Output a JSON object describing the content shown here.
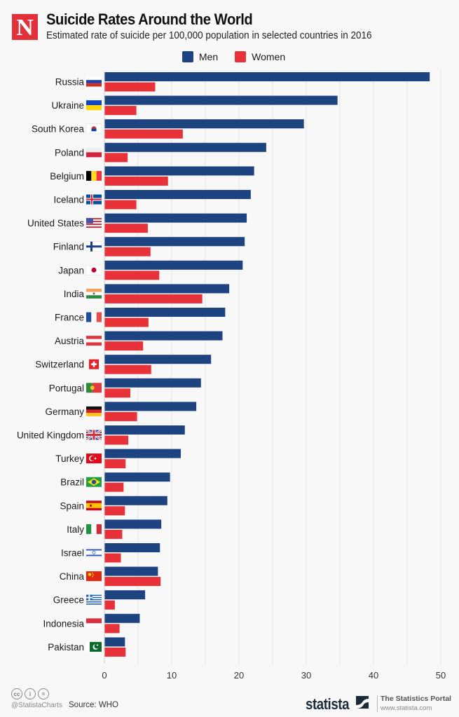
{
  "header": {
    "logo_letter": "N",
    "title": "Suicide Rates Around the World",
    "subtitle": "Estimated rate of suicide per 100,000 population in selected countries in 2016"
  },
  "colors": {
    "men": "#1d4380",
    "women": "#e8323a",
    "grid": "#e4e4e4",
    "background": "#f8f8f8"
  },
  "chart_data": {
    "type": "bar",
    "orientation": "horizontal",
    "title": "Suicide Rates Around the World",
    "subtitle": "Estimated rate of suicide per 100,000 population in selected countries in 2016",
    "xlabel": "",
    "ylabel": "",
    "xlim": [
      0,
      50
    ],
    "xticks": [
      0,
      10,
      20,
      30,
      40,
      50
    ],
    "grid": true,
    "legend_position": "top-center",
    "categories": [
      "Russia",
      "Ukraine",
      "South Korea",
      "Poland",
      "Belgium",
      "Iceland",
      "United States",
      "Finland",
      "Japan",
      "India",
      "France",
      "Austria",
      "Switzerland",
      "Portugal",
      "Germany",
      "United Kingdom",
      "Turkey",
      "Brazil",
      "Spain",
      "Italy",
      "Israel",
      "China",
      "Greece",
      "Indonesia",
      "Pakistan"
    ],
    "flags": [
      "russia-flag",
      "ukraine-flag",
      "south-korea-flag",
      "poland-flag",
      "belgium-flag",
      "iceland-flag",
      "united-states-flag",
      "finland-flag",
      "japan-flag",
      "india-flag",
      "france-flag",
      "austria-flag",
      "switzerland-flag",
      "portugal-flag",
      "germany-flag",
      "united-kingdom-flag",
      "turkey-flag",
      "brazil-flag",
      "spain-flag",
      "italy-flag",
      "israel-flag",
      "china-flag",
      "greece-flag",
      "indonesia-flag",
      "pakistan-flag"
    ],
    "series": [
      {
        "name": "Men",
        "values": [
          48.3,
          34.6,
          29.6,
          24.0,
          22.2,
          21.7,
          21.1,
          20.8,
          20.5,
          18.5,
          17.9,
          17.5,
          15.8,
          14.3,
          13.6,
          11.9,
          11.3,
          9.7,
          9.3,
          8.4,
          8.2,
          7.9,
          6.0,
          5.2,
          3.0
        ]
      },
      {
        "name": "Women",
        "values": [
          7.5,
          4.7,
          11.6,
          3.4,
          9.4,
          4.7,
          6.4,
          6.8,
          8.1,
          14.5,
          6.5,
          5.7,
          6.9,
          3.8,
          4.8,
          3.5,
          3.1,
          2.8,
          3.0,
          2.6,
          2.4,
          8.3,
          1.5,
          2.2,
          3.1
        ]
      }
    ]
  },
  "footer": {
    "cc_icons": [
      "cc",
      "i",
      "="
    ],
    "handle": "@StatistaCharts",
    "source": "Source: WHO",
    "brand": "statista",
    "portal": "The Statistics Portal",
    "url": "www.statista.com"
  }
}
